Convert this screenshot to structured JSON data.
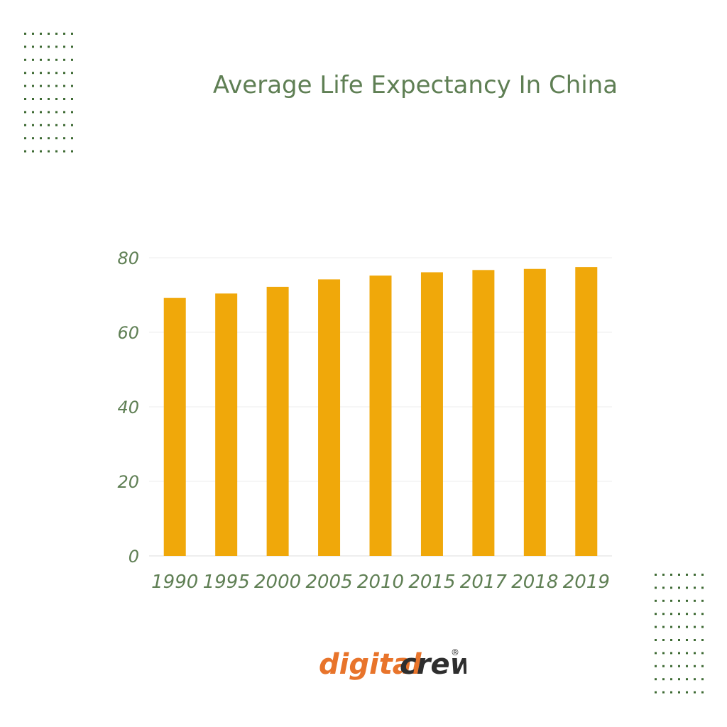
{
  "colors": {
    "bar": "#f0a80a",
    "text": "#5f7f54",
    "grid": "#ececec",
    "dots": "#3f6b35",
    "logo_orange": "#e8742b",
    "logo_dark": "#2e2e2e"
  },
  "chart_data": {
    "type": "bar",
    "title": "Average Life Expectancy In China",
    "categories": [
      "1990",
      "1995",
      "2000",
      "2005",
      "2010",
      "2015",
      "2017",
      "2018",
      "2019"
    ],
    "values": [
      69.2,
      70.4,
      72.2,
      74.2,
      75.2,
      76.1,
      76.7,
      77.0,
      77.5
    ],
    "ylim": [
      0,
      80
    ],
    "yticks": [
      "0",
      "20",
      "40",
      "60",
      "80"
    ],
    "grid": true,
    "legend": "none"
  },
  "logo": {
    "part1": "digital",
    "part2": "crew.",
    "mark": "®"
  }
}
